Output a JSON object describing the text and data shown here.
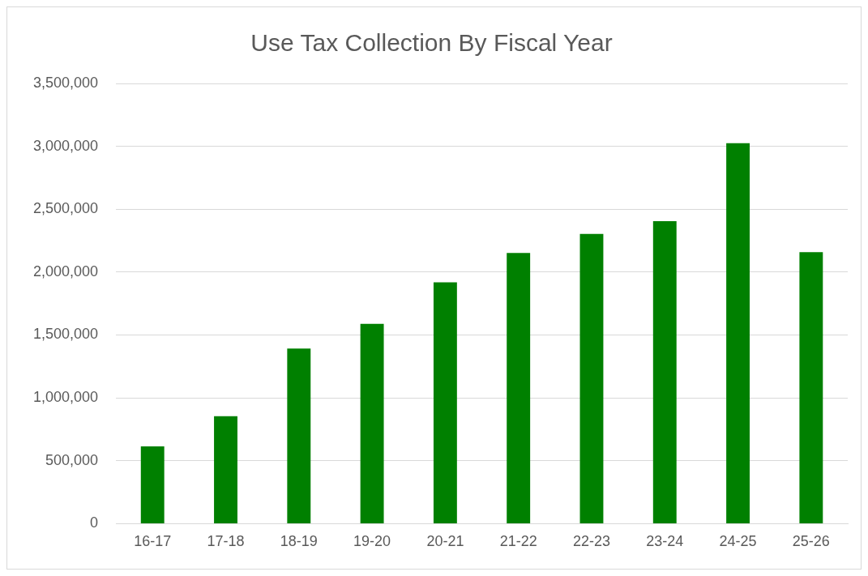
{
  "chart_data": {
    "type": "bar",
    "title": "Use Tax Collection By Fiscal Year",
    "categories": [
      "16-17",
      "17-18",
      "18-19",
      "19-20",
      "20-21",
      "21-22",
      "22-23",
      "23-24",
      "24-25",
      "25-26"
    ],
    "values": [
      614000,
      854000,
      1392000,
      1589000,
      1918000,
      2152000,
      2304000,
      2405000,
      3025000,
      2158000
    ],
    "color": "#008000",
    "ylim": [
      0,
      3500000
    ],
    "yticks": [
      0,
      {
        "value": 500000,
        "label": "500,000"
      },
      {
        "value": 1000000,
        "label": "1,000,000"
      },
      {
        "value": 1500000,
        "label": "1,500,000"
      },
      {
        "value": 2000000,
        "label": "2,000,000"
      },
      {
        "value": 2500000,
        "label": "2,500,000"
      },
      {
        "value": 3000000,
        "label": "3,000,000"
      },
      {
        "value": 3500000,
        "label": "3,500,000"
      }
    ],
    "grid": "y",
    "legend": false
  }
}
